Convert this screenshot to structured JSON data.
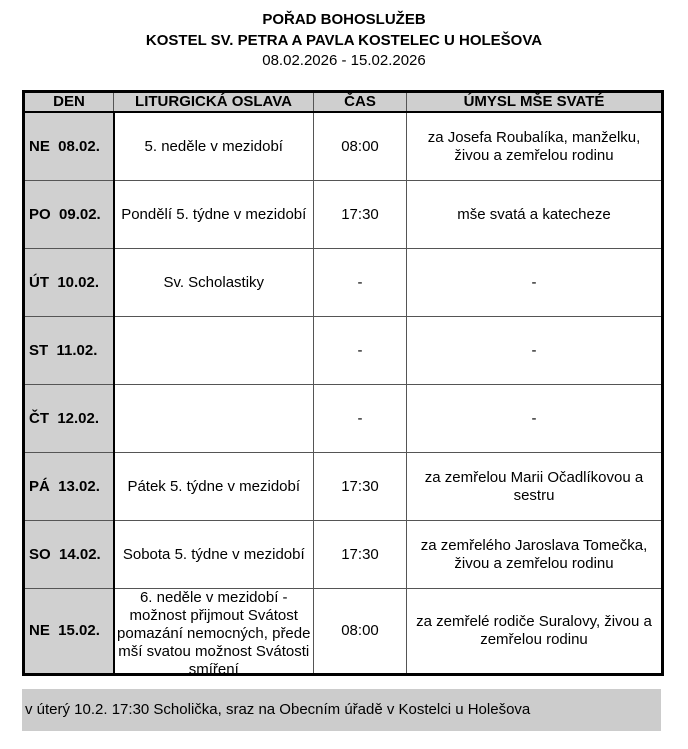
{
  "header": {
    "title": "POŘAD BOHOSLUŽEB",
    "church": "KOSTEL SV. PETRA A PAVLA KOSTELEC U HOLEŠOVA",
    "date_range": "08.02.2026 - 15.02.2026"
  },
  "table": {
    "columns": [
      "DEN",
      "LITURGICKÁ OSLAVA",
      "ČAS",
      "ÚMYSL MŠE SVATÉ"
    ],
    "rows": [
      {
        "day": "NE  08.02.",
        "celebration": "5. neděle v mezidobí",
        "time": "08:00",
        "intention": "za Josefa Roubalíka, manželku, živou a zemřelou rodinu"
      },
      {
        "day": "PO  09.02.",
        "celebration": "Pondělí 5. týdne v mezidobí",
        "time": "17:30",
        "intention": "mše svatá a katecheze"
      },
      {
        "day": "ÚT  10.02.",
        "celebration": "Sv. Scholastiky",
        "time": "-",
        "intention": "-"
      },
      {
        "day": "ST  11.02.",
        "celebration": "",
        "time": "-",
        "intention": "-"
      },
      {
        "day": "ČT  12.02.",
        "celebration": "",
        "time": "-",
        "intention": "-"
      },
      {
        "day": "PÁ  13.02.",
        "celebration": "Pátek 5. týdne v mezidobí",
        "time": "17:30",
        "intention": "za zemřelou Marii Očadlíkovou a sestru"
      },
      {
        "day": "SO  14.02.",
        "celebration": "Sobota 5. týdne v mezidobí",
        "time": "17:30",
        "intention": "za zemřelého Jaroslava Tomečka, živou a zemřelou rodinu"
      },
      {
        "day": "NE  15.02.",
        "celebration": "6. neděle v mezidobí - možnost přijmout Svátost pomazání nemocných, přede mší svatou možnost Svátosti smíření",
        "time": "08:00",
        "intention": "za zemřelé rodiče Suralovy, živou a zemřelou rodinu"
      }
    ]
  },
  "note": "v úterý 10.2. 17:30 Scholička, sraz na Obecním úřadě v Kostelci u Holešova",
  "colors": {
    "header_bg": "#cfcfcf",
    "day_bg": "#d0d0d0",
    "note_bg": "#cccccc"
  }
}
